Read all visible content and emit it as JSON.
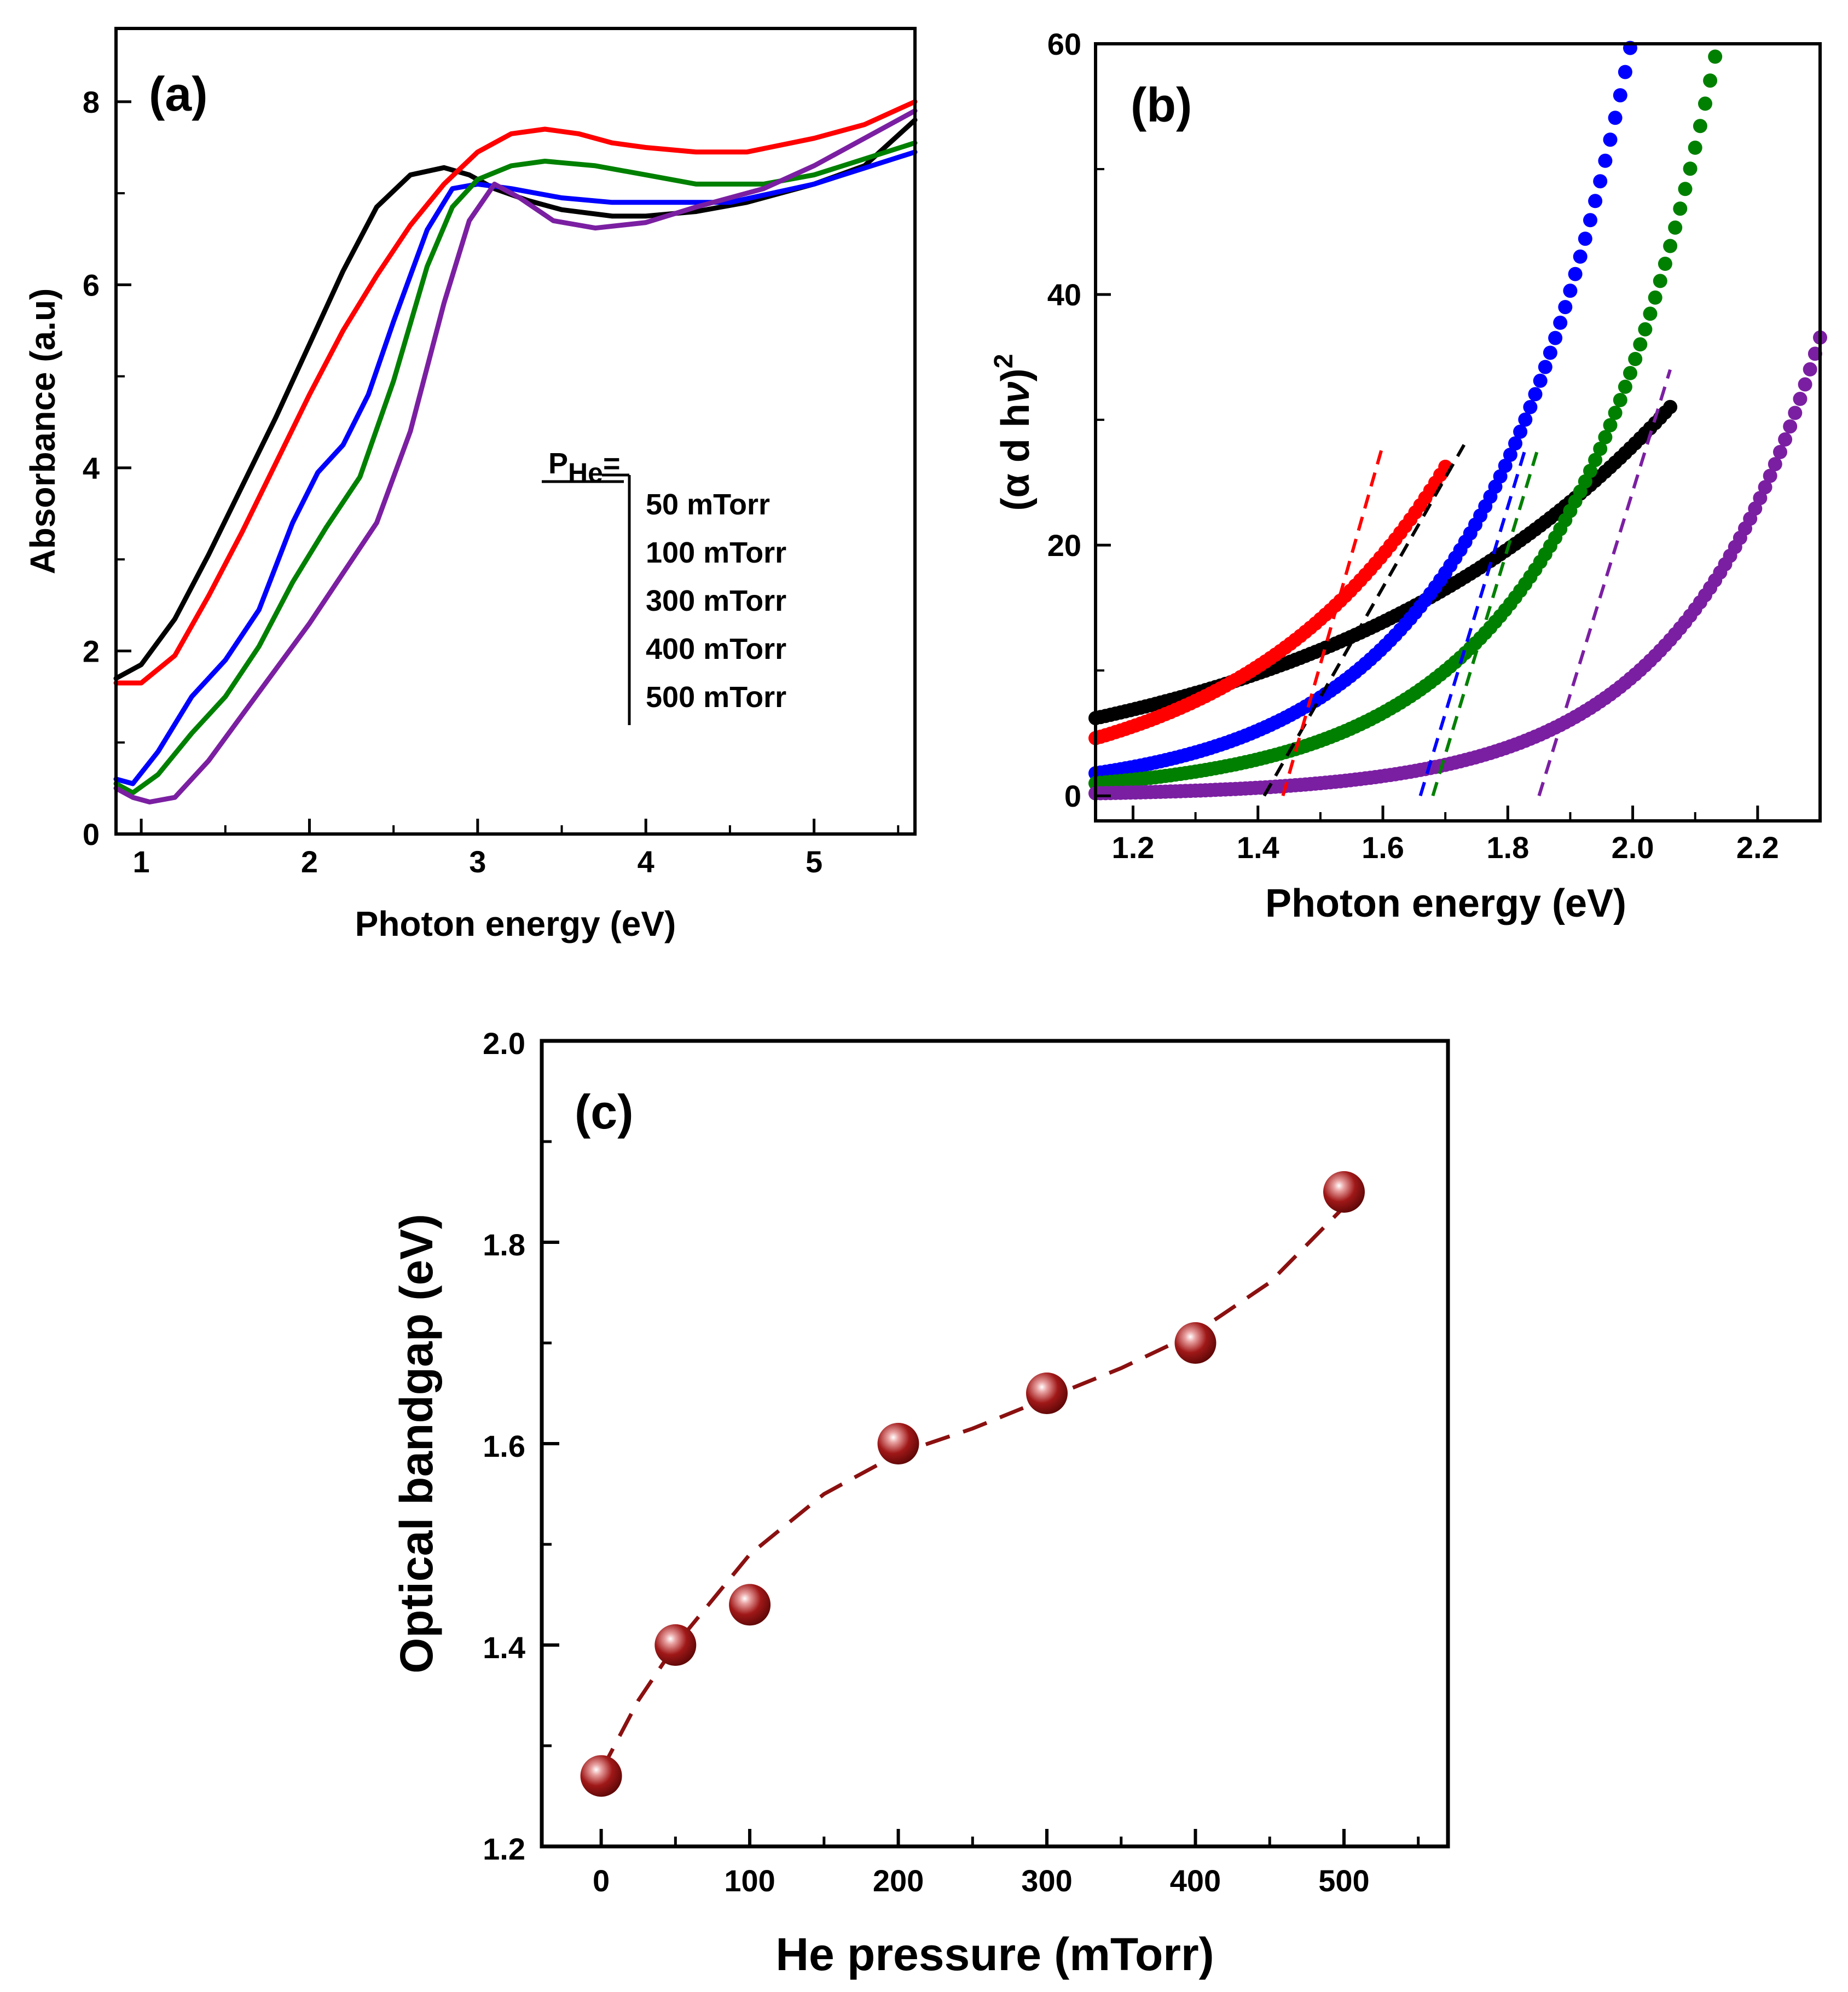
{
  "chart_data": [
    {
      "panel": "(a)",
      "type": "line",
      "xlabel": "Photon energy (eV)",
      "ylabel": "Absorbance (a.u)",
      "xlim": [
        0.85,
        5.6
      ],
      "ylim": [
        0,
        8.8
      ],
      "xticks": [
        1,
        2,
        3,
        4,
        5
      ],
      "yticks": [
        0,
        2,
        4,
        6,
        8
      ],
      "legend_title": "P",
      "legend_title_sub": "He",
      "legend_title_suffix": "=",
      "series": [
        {
          "name": "50 mTorr",
          "color": "#000000",
          "x": [
            0.85,
            1.0,
            1.2,
            1.4,
            1.6,
            1.8,
            2.0,
            2.2,
            2.4,
            2.6,
            2.8,
            2.95,
            3.1,
            3.3,
            3.5,
            3.8,
            4.0,
            4.3,
            4.6,
            5.0,
            5.3,
            5.6
          ],
          "y": [
            1.7,
            1.85,
            2.35,
            3.05,
            3.8,
            4.55,
            5.35,
            6.15,
            6.85,
            7.2,
            7.28,
            7.2,
            7.05,
            6.92,
            6.82,
            6.75,
            6.75,
            6.8,
            6.9,
            7.1,
            7.3,
            7.8
          ]
        },
        {
          "name": "100 mTorr",
          "color": "#ff0000",
          "x": [
            0.85,
            1.0,
            1.2,
            1.4,
            1.6,
            1.8,
            2.0,
            2.2,
            2.4,
            2.6,
            2.8,
            3.0,
            3.2,
            3.4,
            3.6,
            3.8,
            4.0,
            4.3,
            4.6,
            5.0,
            5.3,
            5.6
          ],
          "y": [
            1.65,
            1.65,
            1.95,
            2.6,
            3.3,
            4.05,
            4.8,
            5.5,
            6.1,
            6.65,
            7.1,
            7.45,
            7.65,
            7.7,
            7.65,
            7.55,
            7.5,
            7.45,
            7.45,
            7.6,
            7.75,
            8.0
          ]
        },
        {
          "name": "300 mTorr",
          "color": "#0000ff",
          "x": [
            0.85,
            0.95,
            1.1,
            1.3,
            1.5,
            1.7,
            1.9,
            2.05,
            2.2,
            2.35,
            2.5,
            2.7,
            2.85,
            3.0,
            3.2,
            3.5,
            3.8,
            4.1,
            4.5,
            5.0,
            5.6
          ],
          "y": [
            0.6,
            0.55,
            0.9,
            1.5,
            1.9,
            2.45,
            3.4,
            3.95,
            4.25,
            4.8,
            5.6,
            6.6,
            7.05,
            7.1,
            7.05,
            6.95,
            6.9,
            6.9,
            6.9,
            7.1,
            7.45
          ]
        },
        {
          "name": "400 mTorr",
          "color": "#008000",
          "x": [
            0.85,
            0.95,
            1.1,
            1.3,
            1.5,
            1.7,
            1.9,
            2.1,
            2.3,
            2.5,
            2.7,
            2.85,
            3.0,
            3.2,
            3.4,
            3.7,
            4.0,
            4.3,
            4.7,
            5.0,
            5.6
          ],
          "y": [
            0.55,
            0.45,
            0.65,
            1.1,
            1.5,
            2.05,
            2.75,
            3.35,
            3.9,
            4.95,
            6.2,
            6.85,
            7.15,
            7.3,
            7.35,
            7.3,
            7.2,
            7.1,
            7.1,
            7.2,
            7.55
          ]
        },
        {
          "name": "500 mTorr",
          "color": "#7b1fa2",
          "x": [
            0.85,
            0.95,
            1.05,
            1.2,
            1.4,
            1.6,
            1.8,
            2.0,
            2.2,
            2.4,
            2.6,
            2.8,
            2.95,
            3.1,
            3.25,
            3.45,
            3.7,
            4.0,
            4.3,
            4.7,
            5.0,
            5.3,
            5.6
          ],
          "y": [
            0.5,
            0.4,
            0.35,
            0.4,
            0.8,
            1.3,
            1.8,
            2.3,
            2.85,
            3.4,
            4.4,
            5.8,
            6.7,
            7.1,
            6.95,
            6.7,
            6.62,
            6.68,
            6.85,
            7.05,
            7.3,
            7.6,
            7.9
          ]
        }
      ]
    },
    {
      "panel": "(b)",
      "type": "scatter",
      "xlabel": "Photon energy (eV)",
      "ylabel_main": "(α d h",
      "ylabel_nu": "ν",
      "ylabel_close": ")",
      "ylabel_sup": "2",
      "xlim": [
        1.14,
        2.3
      ],
      "ylim": [
        -2,
        60
      ],
      "xticks": [
        "1.2",
        "1.4",
        "1.6",
        "1.8",
        "2.0",
        "2.2"
      ],
      "yticks": [
        0,
        20,
        40,
        60
      ],
      "series": [
        {
          "name": "50 mTorr",
          "color": "#000000",
          "x0": 1.14,
          "y0": 6.2,
          "k": 1.75,
          "xmax": 2.06,
          "fit_x": [
            1.41,
            1.73
          ],
          "fit_y": [
            0,
            28
          ],
          "Eg": 1.4
        },
        {
          "name": "100 mTorr",
          "color": "#ff0000",
          "x0": 1.14,
          "y0": 4.6,
          "k": 3.11,
          "xmax": 1.7,
          "fit_x": [
            1.44,
            1.6
          ],
          "fit_y": [
            0,
            28
          ],
          "Eg": 1.44
        },
        {
          "name": "300 mTorr",
          "color": "#0000ff",
          "x0": 1.14,
          "y0": 1.8,
          "k": 4.09,
          "xmax": 2.01,
          "fit_x": [
            1.66,
            1.83
          ],
          "fit_y": [
            0,
            28
          ],
          "Eg": 1.65
        },
        {
          "name": "400 mTorr",
          "color": "#008000",
          "x0": 1.14,
          "y0": 1.0,
          "k": 4.11,
          "xmax": 2.14,
          "fit_x": [
            1.68,
            1.85
          ],
          "fit_y": [
            0,
            28
          ],
          "Eg": 1.7
        },
        {
          "name": "500 mTorr",
          "color": "#7b1fa2",
          "x0": 1.14,
          "y0": 0.2,
          "k": 4.49,
          "xmax": 2.3,
          "fit_x": [
            1.85,
            2.06
          ],
          "fit_y": [
            0,
            34
          ],
          "Eg": 1.85
        }
      ]
    },
    {
      "panel": "(c)",
      "type": "scatter",
      "xlabel": "He pressure (mTorr)",
      "ylabel": "Optical bandgap (eV)",
      "xlim": [
        -40,
        570
      ],
      "ylim": [
        1.2,
        2.0
      ],
      "xticks": [
        0,
        100,
        200,
        300,
        400,
        500
      ],
      "yticks": [
        "1.2",
        "1.4",
        "1.6",
        "1.8",
        "2.0"
      ],
      "color": "#8b1010",
      "x": [
        0,
        50,
        100,
        200,
        300,
        400,
        500
      ],
      "y": [
        1.27,
        1.4,
        1.44,
        1.6,
        1.65,
        1.7,
        1.85
      ],
      "trend_x": [
        0,
        25,
        50,
        75,
        100,
        150,
        200,
        250,
        300,
        350,
        400,
        450,
        500
      ],
      "trend_y": [
        1.275,
        1.345,
        1.4,
        1.445,
        1.49,
        1.55,
        1.59,
        1.615,
        1.645,
        1.675,
        1.71,
        1.76,
        1.835
      ]
    }
  ]
}
